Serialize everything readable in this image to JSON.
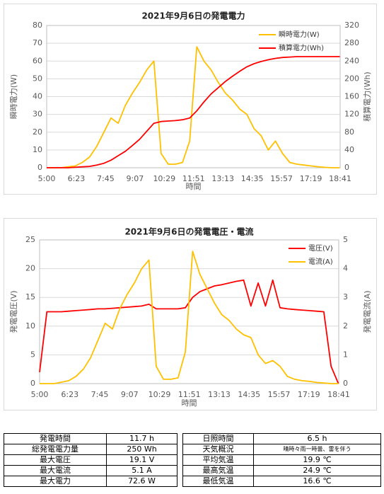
{
  "chart_data": [
    {
      "type": "line",
      "title": "2021年9月6日の発電電力",
      "x_label": "時間",
      "y_label": "瞬時電力(W)",
      "y2_label": "積算電力(Wh)",
      "x": [
        "5:00",
        "5:20",
        "5:40",
        "6:00",
        "6:20",
        "6:40",
        "7:00",
        "7:20",
        "7:40",
        "8:00",
        "8:20",
        "8:40",
        "9:00",
        "9:20",
        "9:40",
        "10:00",
        "10:20",
        "10:40",
        "11:00",
        "11:20",
        "11:40",
        "12:00",
        "12:20",
        "12:40",
        "13:00",
        "13:20",
        "13:40",
        "14:00",
        "14:20",
        "14:40",
        "15:00",
        "15:20",
        "15:40",
        "16:00",
        "16:20",
        "16:40",
        "17:00",
        "17:20",
        "17:40",
        "18:00",
        "18:20",
        "18:40"
      ],
      "xlim": [
        "5:00",
        "18:41"
      ],
      "xticks": [
        "5:00",
        "6:23",
        "7:45",
        "9:07",
        "10:29",
        "11:51",
        "13:13",
        "14:35",
        "15:57",
        "17:19",
        "18:41"
      ],
      "ylim": [
        0,
        80
      ],
      "yticks": [
        0,
        10,
        20,
        30,
        40,
        50,
        60,
        70,
        80
      ],
      "y2lim": [
        0,
        320
      ],
      "y2ticks": [
        0,
        40,
        80,
        120,
        160,
        200,
        240,
        280,
        320
      ],
      "grid": true,
      "legend": "upper right",
      "series": [
        {
          "name": "瞬時電力(W)",
          "color": "#ffc000",
          "values": [
            0,
            0,
            0,
            0.5,
            1,
            3,
            6,
            12,
            20,
            28,
            25,
            35,
            42,
            48,
            55,
            60,
            8,
            2,
            2,
            3,
            15,
            68,
            60,
            55,
            48,
            42,
            38,
            33,
            30,
            22,
            18,
            10,
            15,
            8,
            3,
            2,
            1.5,
            1,
            0.5,
            0.2,
            0,
            0
          ]
        },
        {
          "name": "積算電力(Wh)",
          "color": "#ff0000",
          "axis": "y2",
          "values": [
            0,
            0,
            0,
            0,
            1,
            2,
            3,
            6,
            10,
            17,
            27,
            37,
            50,
            64,
            82,
            100,
            104,
            105,
            106,
            108,
            112,
            128,
            148,
            166,
            180,
            194,
            206,
            217,
            227,
            234,
            239,
            243,
            246,
            248,
            249,
            250,
            250,
            250,
            250,
            250,
            250,
            250
          ]
        }
      ]
    },
    {
      "type": "line",
      "title": "2021年9月6日の発電電圧・電流",
      "x_label": "時間",
      "y_label": "発電電圧(V)",
      "y2_label": "発電電流(A)",
      "x": [
        "5:00",
        "5:20",
        "5:40",
        "6:00",
        "6:20",
        "6:40",
        "7:00",
        "7:20",
        "7:40",
        "8:00",
        "8:20",
        "8:40",
        "9:00",
        "9:20",
        "9:40",
        "10:00",
        "10:20",
        "10:40",
        "11:00",
        "11:20",
        "11:40",
        "12:00",
        "12:20",
        "12:40",
        "13:00",
        "13:20",
        "13:40",
        "14:00",
        "14:20",
        "14:40",
        "15:00",
        "15:20",
        "15:40",
        "16:00",
        "16:20",
        "16:40",
        "17:00",
        "17:20",
        "17:40",
        "18:00",
        "18:20",
        "18:40"
      ],
      "xlim": [
        "5:00",
        "18:41"
      ],
      "xticks": [
        "5:00",
        "6:23",
        "7:45",
        "9:07",
        "10:29",
        "11:51",
        "13:13",
        "14:35",
        "15:57",
        "17:19",
        "18:41"
      ],
      "ylim": [
        0,
        25
      ],
      "yticks": [
        0,
        5,
        10,
        15,
        20,
        25
      ],
      "y2lim": [
        0,
        5
      ],
      "y2ticks": [
        0,
        1,
        2,
        3,
        4,
        5
      ],
      "grid": true,
      "legend": "upper right",
      "series": [
        {
          "name": "電圧(V)",
          "color": "#ff0000",
          "values": [
            2,
            12.5,
            12.5,
            12.5,
            12.6,
            12.7,
            12.8,
            12.9,
            13,
            13,
            13.1,
            13.2,
            13.3,
            13.4,
            13.5,
            13.8,
            13,
            13,
            13,
            13,
            13.2,
            15,
            16,
            16.5,
            17,
            17.2,
            17.5,
            17.8,
            18,
            13.5,
            17.5,
            13.5,
            18,
            13.2,
            13,
            12.9,
            12.8,
            12.7,
            12.6,
            12.5,
            3,
            0
          ]
        },
        {
          "name": "電流(A)",
          "color": "#ffc000",
          "axis": "y2",
          "values": [
            0,
            0,
            0,
            0.05,
            0.1,
            0.25,
            0.5,
            0.9,
            1.5,
            2.1,
            1.9,
            2.6,
            3.1,
            3.5,
            4,
            4.3,
            0.6,
            0.15,
            0.15,
            0.2,
            1.1,
            4.6,
            3.8,
            3.3,
            2.8,
            2.4,
            2.2,
            1.9,
            1.7,
            1.6,
            1,
            0.7,
            0.8,
            0.6,
            0.25,
            0.15,
            0.1,
            0.08,
            0.04,
            0.02,
            0,
            0
          ]
        }
      ]
    }
  ],
  "table": {
    "rows": [
      [
        "発電時間",
        "11.7 h",
        "日照時間",
        "6.5 h"
      ],
      [
        "総発電電力量",
        "250 Wh",
        "天気概況",
        "晴時々雨一時曇、雷を伴う"
      ],
      [
        "最大電圧",
        "19.1 V",
        "平均気温",
        "19.9 ℃"
      ],
      [
        "最大電流",
        "5.1 A",
        "最高気温",
        "24.9 ℃"
      ],
      [
        "最大電力",
        "72.6 W",
        "最低気温",
        "16.6 ℃"
      ]
    ]
  }
}
